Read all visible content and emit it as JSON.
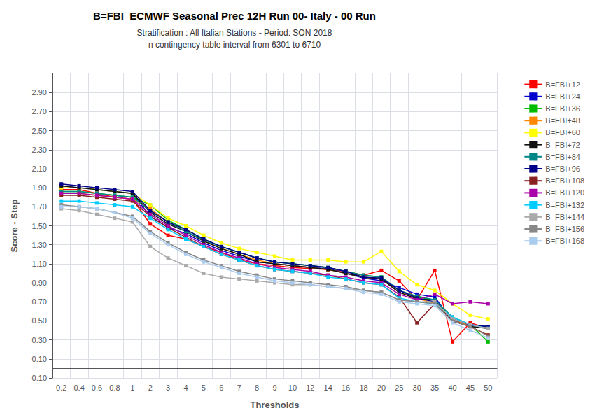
{
  "chart_data": {
    "type": "line",
    "title": "B=FBI  ECMWF Seasonal Prec 12H Run 00- Italy - 00 Run",
    "subtitle": [
      "Stratification : All Italian Stations - Period: SON 2018",
      "n contingency table interval from 6301 to 6710"
    ],
    "xlabel": "Thresholds",
    "ylabel": "Score - Step",
    "ylim": [
      -0.1,
      3.1
    ],
    "yticks": [
      {
        "value": -0.1,
        "label": "-0.10"
      },
      {
        "value": 0.1,
        "label": "0.10"
      },
      {
        "value": 0.3,
        "label": "0.30"
      },
      {
        "value": 0.5,
        "label": "0.50"
      },
      {
        "value": 0.7,
        "label": "0.70"
      },
      {
        "value": 0.9,
        "label": "0.90"
      },
      {
        "value": 1.1,
        "label": "1.10"
      },
      {
        "value": 1.3,
        "label": "1.30"
      },
      {
        "value": 1.5,
        "label": "1.50"
      },
      {
        "value": 1.7,
        "label": "1.70"
      },
      {
        "value": 1.9,
        "label": "1.90"
      },
      {
        "value": 2.1,
        "label": "2.10"
      },
      {
        "value": 2.3,
        "label": "2.30"
      },
      {
        "value": 2.5,
        "label": "2.50"
      },
      {
        "value": 2.7,
        "label": "2.70"
      },
      {
        "value": 2.9,
        "label": "2.90"
      }
    ],
    "categories": [
      "0.2",
      "0.4",
      "0.6",
      "0.8",
      "1",
      "2",
      "3",
      "4",
      "5",
      "6",
      "7",
      "8",
      "9",
      "10",
      "12",
      "14",
      "16",
      "18",
      "20",
      "25",
      "30",
      "35",
      "40",
      "45",
      "50"
    ],
    "grid": true,
    "legend": "right",
    "marker": "square",
    "series": [
      {
        "name": "B=FBI+12",
        "color": "#ff0000",
        "values": [
          1.88,
          1.88,
          1.84,
          1.8,
          1.78,
          1.52,
          1.4,
          1.36,
          1.28,
          1.22,
          1.14,
          1.1,
          1.08,
          1.06,
          1.05,
          1.04,
          1.02,
          0.98,
          1.03,
          0.92,
          0.72,
          1.03,
          0.28,
          0.48,
          0.42
        ]
      },
      {
        "name": "B=FBI+24",
        "color": "#0000cc",
        "values": [
          1.92,
          1.9,
          1.88,
          1.86,
          1.84,
          1.6,
          1.48,
          1.42,
          1.32,
          1.24,
          1.18,
          1.12,
          1.1,
          1.08,
          1.06,
          1.05,
          1.0,
          0.95,
          0.92,
          0.85,
          0.78,
          0.75,
          0.5,
          0.45,
          0.44
        ]
      },
      {
        "name": "B=FBI+36",
        "color": "#00bb00",
        "values": [
          1.86,
          1.86,
          1.84,
          1.82,
          1.8,
          1.72,
          1.56,
          1.46,
          1.36,
          1.28,
          1.22,
          1.16,
          1.12,
          1.1,
          1.08,
          1.06,
          1.02,
          0.98,
          0.96,
          0.82,
          0.75,
          0.72,
          0.52,
          0.46,
          0.28
        ]
      },
      {
        "name": "B=FBI+48",
        "color": "#ff8800",
        "values": [
          1.84,
          1.84,
          1.82,
          1.8,
          1.78,
          1.68,
          1.54,
          1.44,
          1.34,
          1.26,
          1.2,
          1.14,
          1.1,
          1.08,
          1.06,
          1.04,
          1.0,
          0.96,
          0.94,
          0.8,
          0.74,
          0.68,
          0.52,
          0.44,
          0.35
        ]
      },
      {
        "name": "B=FBI+60",
        "color": "#ffff00",
        "values": [
          1.9,
          1.9,
          1.88,
          1.86,
          1.84,
          1.72,
          1.58,
          1.5,
          1.4,
          1.32,
          1.26,
          1.22,
          1.18,
          1.14,
          1.14,
          1.14,
          1.12,
          1.12,
          1.23,
          1.02,
          0.88,
          0.82,
          0.68,
          0.56,
          0.52
        ]
      },
      {
        "name": "B=FBI+72",
        "color": "#111111",
        "values": [
          1.92,
          1.9,
          1.88,
          1.86,
          1.84,
          1.64,
          1.52,
          1.44,
          1.34,
          1.26,
          1.2,
          1.12,
          1.1,
          1.08,
          1.06,
          1.04,
          1.0,
          0.96,
          0.94,
          0.8,
          0.73,
          0.72,
          0.5,
          0.44,
          0.42
        ]
      },
      {
        "name": "B=FBI+84",
        "color": "#008888",
        "values": [
          1.86,
          1.86,
          1.84,
          1.82,
          1.8,
          1.66,
          1.54,
          1.44,
          1.35,
          1.28,
          1.22,
          1.16,
          1.12,
          1.1,
          1.08,
          1.06,
          1.02,
          0.98,
          0.96,
          0.82,
          0.76,
          0.72,
          0.54,
          0.46,
          0.44
        ]
      },
      {
        "name": "B=FBI+96",
        "color": "#000088",
        "values": [
          1.94,
          1.92,
          1.9,
          1.88,
          1.86,
          1.66,
          1.54,
          1.46,
          1.36,
          1.28,
          1.22,
          1.16,
          1.12,
          1.1,
          1.08,
          1.06,
          1.02,
          0.96,
          0.95,
          0.82,
          0.74,
          0.7,
          0.52,
          0.46,
          0.44
        ]
      },
      {
        "name": "B=FBI+108",
        "color": "#882222",
        "values": [
          1.82,
          1.82,
          1.8,
          1.78,
          1.76,
          1.6,
          1.48,
          1.38,
          1.28,
          1.2,
          1.14,
          1.08,
          1.04,
          1.02,
          1.0,
          0.98,
          0.94,
          0.9,
          0.88,
          0.75,
          0.48,
          0.68,
          0.5,
          0.44,
          0.35
        ]
      },
      {
        "name": "B=FBI+120",
        "color": "#aa00aa",
        "values": [
          1.84,
          1.84,
          1.82,
          1.8,
          1.78,
          1.62,
          1.5,
          1.4,
          1.3,
          1.22,
          1.16,
          1.1,
          1.06,
          1.04,
          1.02,
          0.98,
          0.96,
          0.92,
          0.9,
          0.78,
          0.72,
          0.78,
          0.68,
          0.7,
          0.68
        ]
      },
      {
        "name": "B=FBI+132",
        "color": "#00ccff",
        "values": [
          1.76,
          1.76,
          1.74,
          1.72,
          1.7,
          1.58,
          1.46,
          1.36,
          1.28,
          1.2,
          1.14,
          1.08,
          1.04,
          1.02,
          1.0,
          0.96,
          0.94,
          0.9,
          0.88,
          0.74,
          0.7,
          0.68,
          0.54,
          0.46,
          0.42
        ]
      },
      {
        "name": "B=FBI+144",
        "color": "#aaaaaa",
        "values": [
          1.68,
          1.66,
          1.62,
          1.58,
          1.54,
          1.28,
          1.16,
          1.08,
          1.0,
          0.96,
          0.94,
          0.92,
          0.9,
          0.88,
          0.88,
          0.86,
          0.84,
          0.82,
          0.8,
          0.72,
          0.7,
          0.7,
          0.52,
          0.46,
          0.42
        ]
      },
      {
        "name": "B=FBI+156",
        "color": "#888888",
        "values": [
          1.72,
          1.7,
          1.68,
          1.64,
          1.6,
          1.44,
          1.32,
          1.22,
          1.14,
          1.08,
          1.02,
          0.98,
          0.94,
          0.92,
          0.9,
          0.88,
          0.86,
          0.82,
          0.8,
          0.72,
          0.7,
          0.68,
          0.5,
          0.44,
          0.34
        ]
      },
      {
        "name": "B=FBI+168",
        "color": "#aaccee",
        "values": [
          1.7,
          1.7,
          1.68,
          1.64,
          1.58,
          1.42,
          1.3,
          1.2,
          1.12,
          1.06,
          1.0,
          0.96,
          0.92,
          0.9,
          0.88,
          0.86,
          0.84,
          0.8,
          0.78,
          0.7,
          0.68,
          0.66,
          0.48,
          0.4,
          0.32
        ]
      }
    ]
  }
}
